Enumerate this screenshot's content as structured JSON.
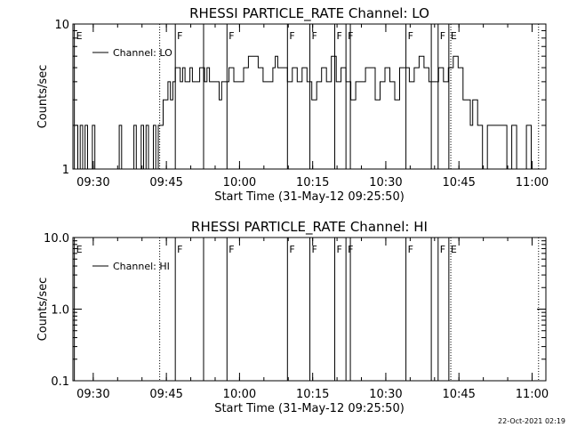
{
  "footer": {
    "timestamp": "22-Oct-2021 02:19"
  },
  "chart_data": [
    {
      "type": "line",
      "title": "RHESSI PARTICLE_RATE Channel: LO",
      "xlabel": "Start Time (31-May-12 09:25:50)",
      "ylabel": "Counts/sec",
      "x_unit": "minutes_after_09:25:50",
      "xlim": [
        0,
        97
      ],
      "ylim": [
        1,
        10
      ],
      "yscale": "log",
      "ytick_values": [
        1,
        10
      ],
      "ytick_labels": [
        "1",
        "10"
      ],
      "xtick_values": [
        4.17,
        19.17,
        34.17,
        49.17,
        64.17,
        79.17,
        94.17
      ],
      "xtick_labels": [
        "09:30",
        "09:45",
        "10:00",
        "10:15",
        "10:30",
        "10:45",
        "11:00"
      ],
      "legend": {
        "label": "Channel: LO",
        "placement": "top-left"
      },
      "flags": [
        {
          "x": 0.3,
          "label": "E",
          "style": "solid"
        },
        {
          "x": 17.8,
          "label": "",
          "style": "dotted"
        },
        {
          "x": 21.0,
          "label": "F",
          "style": "solid"
        },
        {
          "x": 26.8,
          "label": "",
          "style": "solid"
        },
        {
          "x": 31.6,
          "label": "F",
          "style": "solid"
        },
        {
          "x": 44.0,
          "label": "F",
          "style": "solid"
        },
        {
          "x": 48.6,
          "label": "F",
          "style": "solid"
        },
        {
          "x": 53.7,
          "label": "F",
          "style": "solid"
        },
        {
          "x": 56.0,
          "label": "F",
          "style": "solid"
        },
        {
          "x": 56.9,
          "label": "",
          "style": "solid"
        },
        {
          "x": 68.3,
          "label": "F",
          "style": "solid"
        },
        {
          "x": 73.5,
          "label": "",
          "style": "solid"
        },
        {
          "x": 74.9,
          "label": "F",
          "style": "solid"
        },
        {
          "x": 77.1,
          "label": "E",
          "style": "solid"
        },
        {
          "x": 77.5,
          "label": "",
          "style": "dotted"
        },
        {
          "x": 95.5,
          "label": "",
          "style": "dotted"
        }
      ],
      "series": [
        {
          "x": [
            0.5,
            1,
            1.5,
            2,
            2.5,
            3,
            3.5,
            4,
            4.5,
            5,
            6,
            7,
            8,
            8.5,
            9,
            9.5,
            10,
            11,
            12,
            12.5,
            13,
            13.5,
            14,
            14.5,
            15,
            15.5,
            16,
            16.5,
            17,
            17.5,
            18,
            18.5,
            19,
            19.5,
            20,
            20.5,
            21,
            22,
            22.5,
            23,
            24,
            24.5,
            25,
            26,
            27,
            27.5,
            28,
            30,
            30.5,
            32,
            33,
            35,
            36,
            38,
            39,
            41,
            41.5,
            42,
            44,
            45,
            46,
            47,
            48,
            49,
            50,
            51,
            52,
            53,
            54,
            55,
            56,
            57,
            58,
            60,
            62,
            63,
            64,
            65,
            66,
            67,
            69,
            70,
            71,
            72,
            73,
            75,
            76,
            77,
            78,
            79,
            80,
            81,
            81.5,
            82,
            83,
            84,
            85,
            86,
            87,
            88,
            89,
            90,
            91,
            92,
            93,
            94,
            95
          ],
          "y": [
            2,
            1,
            2,
            1,
            2,
            1,
            1,
            2,
            1,
            1,
            1,
            1,
            1,
            1,
            1,
            2,
            1,
            1,
            1,
            2,
            1,
            1,
            2,
            1,
            2,
            1,
            1,
            2,
            1,
            2,
            2,
            3,
            3,
            4,
            3,
            4,
            5,
            4,
            5,
            4,
            5,
            4,
            4,
            5,
            4,
            5,
            4,
            3,
            4,
            5,
            4,
            5,
            6,
            5,
            4,
            5,
            6,
            5,
            4,
            5,
            4,
            5,
            4,
            3,
            4,
            5,
            4,
            6,
            4,
            5,
            4,
            3,
            4,
            5,
            3,
            4,
            5,
            4,
            3,
            5,
            4,
            5,
            6,
            5,
            4,
            5,
            4,
            5,
            6,
            5,
            3,
            3,
            2,
            3,
            2,
            1,
            2,
            2,
            2,
            2,
            1,
            2,
            1,
            1,
            2,
            1,
            1
          ]
        }
      ]
    },
    {
      "type": "line",
      "title": "RHESSI PARTICLE_RATE Channel: HI",
      "xlabel": "Start Time (31-May-12 09:25:50)",
      "ylabel": "Counts/sec",
      "x_unit": "minutes_after_09:25:50",
      "xlim": [
        0,
        97
      ],
      "ylim": [
        0.1,
        10
      ],
      "yscale": "log",
      "ytick_values": [
        0.1,
        1,
        10
      ],
      "ytick_labels": [
        "0.1",
        "1.0",
        "10.0"
      ],
      "xtick_values": [
        4.17,
        19.17,
        34.17,
        49.17,
        64.17,
        79.17,
        94.17
      ],
      "xtick_labels": [
        "09:30",
        "09:45",
        "10:00",
        "10:15",
        "10:30",
        "10:45",
        "11:00"
      ],
      "legend": {
        "label": "Channel: HI",
        "placement": "top-left"
      },
      "flags": [
        {
          "x": 0.3,
          "label": "E",
          "style": "solid"
        },
        {
          "x": 17.8,
          "label": "",
          "style": "dotted"
        },
        {
          "x": 21.0,
          "label": "F",
          "style": "solid"
        },
        {
          "x": 26.8,
          "label": "",
          "style": "solid"
        },
        {
          "x": 31.6,
          "label": "F",
          "style": "solid"
        },
        {
          "x": 44.0,
          "label": "F",
          "style": "solid"
        },
        {
          "x": 48.6,
          "label": "F",
          "style": "solid"
        },
        {
          "x": 53.7,
          "label": "F",
          "style": "solid"
        },
        {
          "x": 56.0,
          "label": "F",
          "style": "solid"
        },
        {
          "x": 56.9,
          "label": "",
          "style": "solid"
        },
        {
          "x": 68.3,
          "label": "F",
          "style": "solid"
        },
        {
          "x": 73.5,
          "label": "",
          "style": "solid"
        },
        {
          "x": 74.9,
          "label": "F",
          "style": "solid"
        },
        {
          "x": 77.1,
          "label": "E",
          "style": "solid"
        },
        {
          "x": 77.5,
          "label": "",
          "style": "dotted"
        },
        {
          "x": 95.5,
          "label": "",
          "style": "dotted"
        }
      ],
      "series": [
        {
          "x": [],
          "y": []
        }
      ]
    }
  ]
}
